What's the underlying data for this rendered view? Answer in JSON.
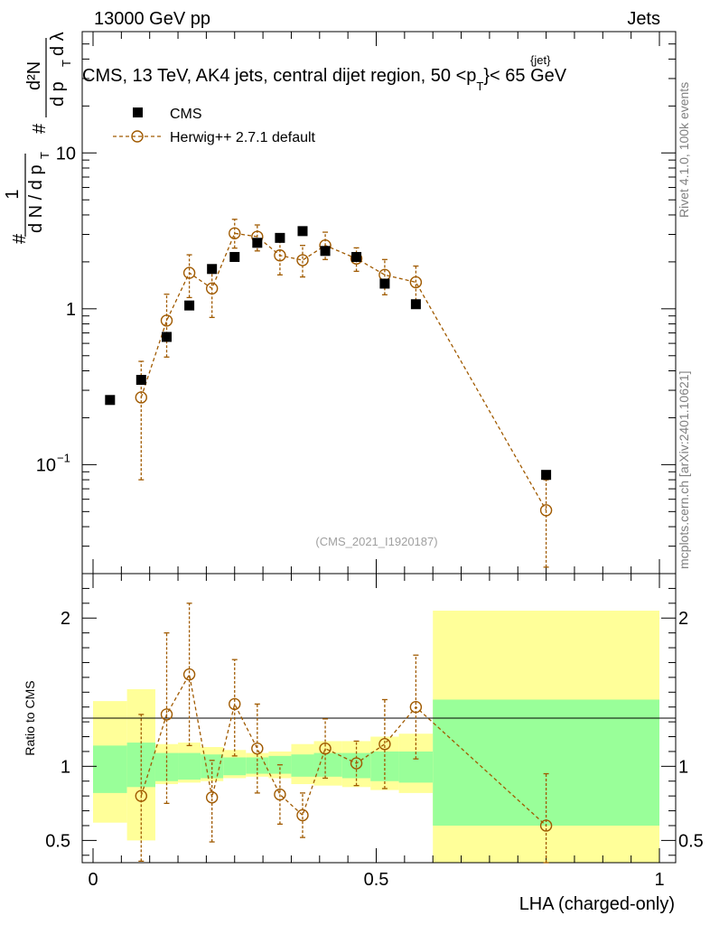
{
  "header": {
    "left_title": "13000 GeV pp",
    "right_title": "Jets"
  },
  "side_labels": {
    "rivet": "Rivet 4.1.0,  100k events",
    "mcplots": "mcplots.cern.ch [arXiv:2401.10621]"
  },
  "chart_data": {
    "type": "scatter",
    "title": "CMS, 13 TeV, AK4 jets, central dijet region, 50 < p_T^{jet} < 65 GeV",
    "title_parts": {
      "main": "CMS, 13 TeV, AK4 jets, central dijet region, 50 <",
      "p": "p",
      "sub": "T",
      "sup": "{jet}",
      "tail": "< 65 GeV"
    },
    "watermark": "(CMS_2021_I1920187)",
    "xlabel": "LHA (charged-only)",
    "ylabel": "1/(dN/dp_T) d²N/(dp_T dλ)",
    "ylabel_parts": {
      "hash1": "#",
      "one": "1",
      "dN": "d N / d p",
      "T1": "T",
      "hash2": "#",
      "d2N": "d²N",
      "dpT": "d p",
      "T2": "T",
      "dlambda": "d λ"
    },
    "ratio_ylabel": "Ratio to CMS",
    "xlim": [
      0,
      1
    ],
    "ylim_main": [
      0.02,
      60
    ],
    "yscale_main": "log",
    "ylim_ratio": [
      0.35,
      2.3
    ],
    "x_ticks": [
      {
        "value": 0,
        "label": "0"
      },
      {
        "value": 0.5,
        "label": "0.5"
      },
      {
        "value": 1,
        "label": "1"
      }
    ],
    "y_ticks_main": [
      {
        "value": 0.1,
        "label": "10",
        "sup": "−1"
      },
      {
        "value": 1,
        "label": "1",
        "sup": ""
      },
      {
        "value": 10,
        "label": "10",
        "sup": ""
      }
    ],
    "y_ticks_ratio": [
      {
        "value": 0.5,
        "label": "0.5"
      },
      {
        "value": 1,
        "label": "1"
      },
      {
        "value": 2,
        "label": "2"
      }
    ],
    "legend": [
      {
        "name": "CMS",
        "marker": "filled-square",
        "color": "#000000"
      },
      {
        "name": "Herwig++ 2.7.1 default",
        "marker": "open-circle-dashed",
        "color": "#a05a00"
      }
    ],
    "data_series": {
      "name": "CMS",
      "x": [
        0.03,
        0.085,
        0.13,
        0.17,
        0.21,
        0.25,
        0.29,
        0.33,
        0.37,
        0.41,
        0.465,
        0.515,
        0.57,
        0.8
      ],
      "y": [
        0.26,
        0.35,
        0.66,
        1.05,
        1.8,
        2.15,
        2.65,
        2.85,
        3.15,
        2.35,
        2.15,
        1.45,
        1.07,
        0.086
      ]
    },
    "mc_series": {
      "name": "Herwig++ 2.7.1 default",
      "x": [
        0.085,
        0.13,
        0.17,
        0.21,
        0.25,
        0.29,
        0.33,
        0.37,
        0.41,
        0.465,
        0.515,
        0.57,
        0.8
      ],
      "y": [
        0.27,
        0.84,
        1.7,
        1.35,
        3.05,
        2.9,
        2.2,
        2.05,
        2.55,
        2.1,
        1.65,
        1.48,
        0.051
      ],
      "yerr_low": [
        0.19,
        0.35,
        0.52,
        0.47,
        0.6,
        0.55,
        0.55,
        0.45,
        0.48,
        0.36,
        0.42,
        0.35,
        0.029
      ],
      "yerr_high": [
        0.19,
        0.4,
        0.52,
        0.47,
        0.7,
        0.55,
        0.55,
        0.5,
        0.55,
        0.36,
        0.42,
        0.4,
        0.029
      ]
    },
    "ratio_series": {
      "x": [
        0.085,
        0.13,
        0.17,
        0.21,
        0.25,
        0.29,
        0.33,
        0.37,
        0.41,
        0.465,
        0.515,
        0.57,
        0.8
      ],
      "y": [
        0.8,
        1.35,
        1.62,
        0.79,
        1.42,
        1.12,
        0.81,
        0.67,
        1.12,
        1.02,
        1.15,
        1.4,
        0.6
      ],
      "yerr_low": [
        0.44,
        0.6,
        0.48,
        0.3,
        0.35,
        0.3,
        0.2,
        0.15,
        0.2,
        0.15,
        0.3,
        0.35,
        0.35
      ],
      "yerr_high": [
        0.55,
        0.55,
        0.48,
        0.25,
        0.3,
        0.3,
        0.2,
        0.15,
        0.2,
        0.15,
        0.3,
        0.35,
        0.35
      ]
    },
    "uncertainty_bands": [
      {
        "xlo": 0.0,
        "xhi": 0.06,
        "g_lo": 0.82,
        "g_hi": 1.14,
        "y_lo": 0.62,
        "y_hi": 1.44
      },
      {
        "xlo": 0.06,
        "xhi": 0.11,
        "g_lo": 0.86,
        "g_hi": 1.16,
        "y_lo": 0.5,
        "y_hi": 1.52
      },
      {
        "xlo": 0.11,
        "xhi": 0.15,
        "g_lo": 0.9,
        "g_hi": 1.09,
        "y_lo": 0.88,
        "y_hi": 1.15
      },
      {
        "xlo": 0.15,
        "xhi": 0.19,
        "g_lo": 0.91,
        "g_hi": 1.09,
        "y_lo": 0.89,
        "y_hi": 1.16
      },
      {
        "xlo": 0.19,
        "xhi": 0.23,
        "g_lo": 0.92,
        "g_hi": 1.08,
        "y_lo": 0.9,
        "y_hi": 1.13
      },
      {
        "xlo": 0.23,
        "xhi": 0.27,
        "g_lo": 0.94,
        "g_hi": 1.06,
        "y_lo": 0.92,
        "y_hi": 1.11
      },
      {
        "xlo": 0.27,
        "xhi": 0.31,
        "g_lo": 0.95,
        "g_hi": 1.06,
        "y_lo": 0.93,
        "y_hi": 1.09
      },
      {
        "xlo": 0.31,
        "xhi": 0.35,
        "g_lo": 0.95,
        "g_hi": 1.07,
        "y_lo": 0.92,
        "y_hi": 1.1
      },
      {
        "xlo": 0.35,
        "xhi": 0.39,
        "g_lo": 0.93,
        "g_hi": 1.08,
        "y_lo": 0.88,
        "y_hi": 1.15
      },
      {
        "xlo": 0.39,
        "xhi": 0.44,
        "g_lo": 0.93,
        "g_hi": 1.09,
        "y_lo": 0.87,
        "y_hi": 1.17
      },
      {
        "xlo": 0.44,
        "xhi": 0.49,
        "g_lo": 0.92,
        "g_hi": 1.09,
        "y_lo": 0.86,
        "y_hi": 1.17
      },
      {
        "xlo": 0.49,
        "xhi": 0.54,
        "g_lo": 0.9,
        "g_hi": 1.1,
        "y_lo": 0.84,
        "y_hi": 1.2
      },
      {
        "xlo": 0.54,
        "xhi": 0.6,
        "g_lo": 0.89,
        "g_hi": 1.1,
        "y_lo": 0.82,
        "y_hi": 1.22
      },
      {
        "xlo": 0.6,
        "xhi": 1.0,
        "g_lo": 0.6,
        "g_hi": 1.45,
        "y_lo": 0.35,
        "y_hi": 2.05
      }
    ],
    "colors": {
      "mc": "#a05a00",
      "band_inner": "#99ff99",
      "band_outer": "#ffff99",
      "data": "#000000"
    }
  }
}
